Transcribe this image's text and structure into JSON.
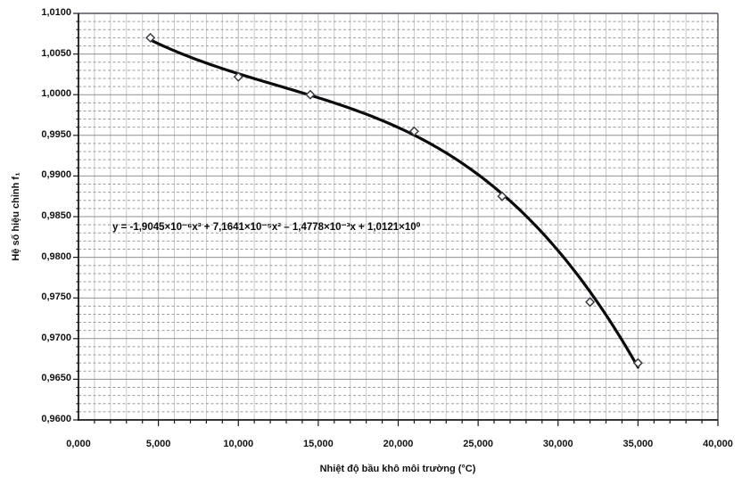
{
  "chart_data": {
    "type": "scatter",
    "title": "",
    "xlabel": "Nhiệt độ bầu khô môi trường (°C)",
    "ylabel": "Hệ số hiệu chỉnh f₁",
    "equation_label": "y = -1,9045×10⁻⁶x³ + 7,1641×10⁻⁵x² – 1,4778×10⁻³x + 1,0121×10⁰",
    "xlim": [
      0,
      40
    ],
    "ylim": [
      0.96,
      1.01
    ],
    "x_major_step": 5,
    "x_minor_step": 1,
    "y_major_step": 0.005,
    "y_minor_step": 0.001,
    "grid": "on",
    "legend": "none",
    "x_ticks": [
      {
        "v": 0,
        "label": "0,000"
      },
      {
        "v": 5,
        "label": "5,000"
      },
      {
        "v": 10,
        "label": "10,000"
      },
      {
        "v": 15,
        "label": "15,000"
      },
      {
        "v": 20,
        "label": "20,000"
      },
      {
        "v": 25,
        "label": "25,000"
      },
      {
        "v": 30,
        "label": "30,000"
      },
      {
        "v": 35,
        "label": "35,000"
      },
      {
        "v": 40,
        "label": "40,000"
      }
    ],
    "y_ticks": [
      {
        "v": 1.01,
        "label": "1,0100"
      },
      {
        "v": 1.005,
        "label": "1,0050"
      },
      {
        "v": 1.0,
        "label": "1,0000"
      },
      {
        "v": 0.995,
        "label": "0,9950"
      },
      {
        "v": 0.99,
        "label": "0,9900"
      },
      {
        "v": 0.985,
        "label": "0,9850"
      },
      {
        "v": 0.98,
        "label": "0,9800"
      },
      {
        "v": 0.975,
        "label": "0,9750"
      },
      {
        "v": 0.97,
        "label": "0,9700"
      },
      {
        "v": 0.965,
        "label": "0,9650"
      },
      {
        "v": 0.96,
        "label": "0,9600"
      }
    ],
    "points": [
      {
        "x": 4.5,
        "y": 1.007
      },
      {
        "x": 10.0,
        "y": 1.0022
      },
      {
        "x": 14.5,
        "y": 1.0
      },
      {
        "x": 21.0,
        "y": 0.9955
      },
      {
        "x": 26.5,
        "y": 0.9875
      },
      {
        "x": 32.0,
        "y": 0.9745
      },
      {
        "x": 35.0,
        "y": 0.967
      }
    ],
    "trendline": {
      "kind": "poly3",
      "coefficients": [
        -1.9045e-06,
        7.1641e-05,
        -0.0014778,
        1.0121
      ],
      "x_range": [
        4.5,
        35.0
      ]
    },
    "colors": {
      "curve": "#0b0b0b",
      "marker_stroke": "#3f3f46",
      "marker_fill": "#fafafa",
      "grid_v_minor": "#c9c9d0",
      "grid_v_major": "#b4b4bc",
      "grid_h_minor": "#9b9b9b",
      "grid_h_major": "#8f8f97",
      "frame": "#55555e",
      "axis": "#1a1a1a"
    }
  }
}
